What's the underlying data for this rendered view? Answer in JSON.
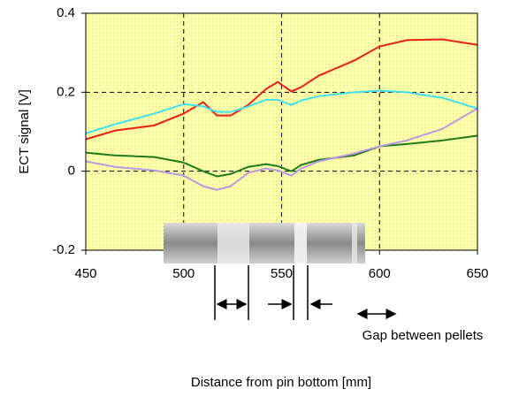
{
  "chart_data": {
    "type": "line",
    "xlabel": "Distance from pin bottom [mm]",
    "ylabel": "ECT signal [V]",
    "annotation": "Gap between pellets",
    "x": [
      450,
      465,
      485,
      500,
      510,
      517,
      524,
      533,
      542,
      548,
      555,
      560,
      569,
      587,
      600,
      614,
      632,
      650
    ],
    "series": [
      {
        "color": "#e8201a",
        "values": [
          0.081,
          0.103,
          0.116,
          0.146,
          0.175,
          0.141,
          0.141,
          0.168,
          0.208,
          0.226,
          0.202,
          0.213,
          0.242,
          0.28,
          0.316,
          0.332,
          0.334,
          0.32
        ]
      },
      {
        "color": "#40e0f0",
        "values": [
          0.096,
          0.119,
          0.146,
          0.17,
          0.164,
          0.15,
          0.15,
          0.164,
          0.181,
          0.181,
          0.168,
          0.179,
          0.19,
          0.2,
          0.204,
          0.2,
          0.186,
          0.159
        ]
      },
      {
        "color": "#1f7a1f",
        "values": [
          0.047,
          0.04,
          0.036,
          0.022,
          0,
          -0.013,
          -0.007,
          0.011,
          0.018,
          0.013,
          0,
          0.016,
          0.029,
          0.04,
          0.063,
          0.069,
          0.078,
          0.09
        ]
      },
      {
        "color": "#b899e0",
        "values": [
          0.025,
          0.011,
          0.002,
          -0.011,
          -0.038,
          -0.047,
          -0.038,
          -0.004,
          0.007,
          0.002,
          -0.011,
          0.007,
          0.025,
          0.045,
          0.063,
          0.078,
          0.107,
          0.159
        ]
      }
    ],
    "xlim": [
      450,
      650
    ],
    "xticks": [
      450,
      500,
      550,
      600,
      650
    ],
    "ylim": [
      -0.2,
      0.4
    ],
    "yticks": [
      -0.2,
      0,
      0.2,
      0.4
    ],
    "grid": true
  }
}
